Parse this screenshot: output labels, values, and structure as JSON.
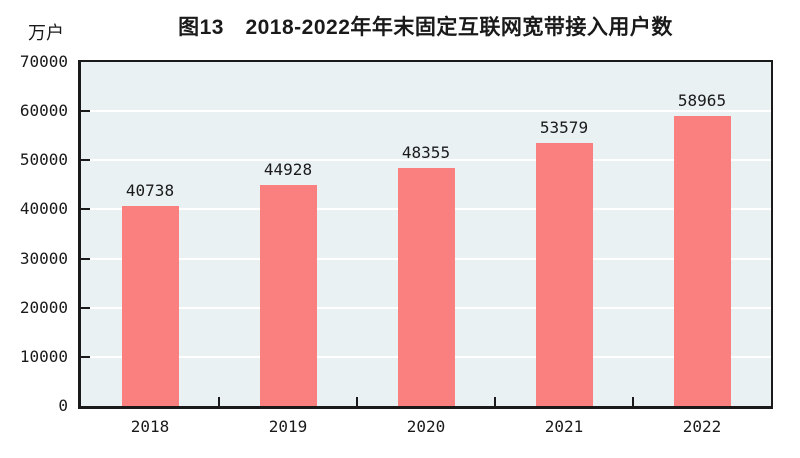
{
  "chart_data": {
    "type": "bar",
    "title": "图13　2018-2022年年末固定互联网宽带接入用户数",
    "unit_label": "万户",
    "categories": [
      "2018",
      "2019",
      "2020",
      "2021",
      "2022"
    ],
    "values": [
      40738,
      44928,
      48355,
      53579,
      58965
    ],
    "data_labels": [
      "40738",
      "44928",
      "48355",
      "53579",
      "58965"
    ],
    "ylim": [
      0,
      70000
    ],
    "ytick_step": 10000,
    "ytick_labels": [
      "0",
      "10000",
      "20000",
      "30000",
      "40000",
      "50000",
      "60000",
      "70000"
    ],
    "grid": "horizontal-white-lines",
    "legend": "none",
    "colors": {
      "bar": "#fa7f7f",
      "plot_background": "#e9f1f3",
      "axis_frame": "#1a1a1a",
      "gridline": "#ffffff",
      "text": "#1a1a1a",
      "page_background": "#ffffff"
    }
  }
}
